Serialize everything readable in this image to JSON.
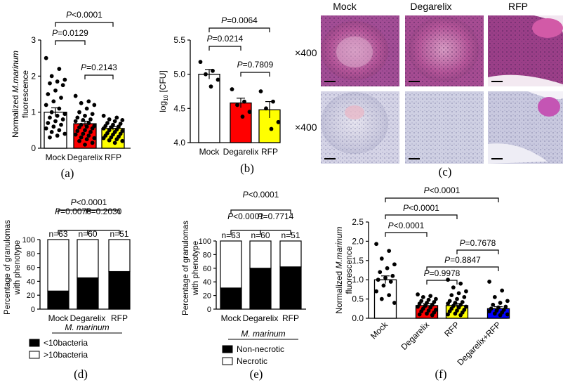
{
  "panel_labels": {
    "a": "(a)",
    "b": "(b)",
    "c": "(c)",
    "d": "(d)",
    "e": "(e)",
    "f": "(f)"
  },
  "histology": {
    "columns": [
      "Mock",
      "Degarelix",
      "RFP"
    ],
    "row_labels": [
      "×400",
      "×400"
    ]
  },
  "chart_data": [
    {
      "id": "a",
      "type": "bar",
      "categories": [
        "Mock",
        "Degarelix",
        "RFP"
      ],
      "values": [
        1.0,
        0.68,
        0.55
      ],
      "errors": [
        0.12,
        0.07,
        0.05
      ],
      "colors": [
        "#ffffff",
        "#ff0000",
        "#ffff00"
      ],
      "ylabel_line1": "Normalized ",
      "ylabel_italic": "M.marinum",
      "ylabel_line2": "fluorescence",
      "ylim": [
        0,
        3
      ],
      "yticks": [
        "0",
        "1",
        "2",
        "3"
      ],
      "points": [
        [
          2.5,
          2.2,
          2.0,
          1.9,
          1.85,
          1.8,
          1.75,
          1.6,
          1.5,
          1.4,
          1.3,
          1.2,
          1.1,
          1.0,
          0.95,
          0.9,
          0.85,
          0.8,
          0.75,
          0.7,
          0.65,
          0.6,
          0.55,
          0.5,
          0.45,
          0.4,
          0.35,
          0.3
        ],
        [
          1.45,
          1.3,
          1.25,
          1.2,
          1.1,
          1.0,
          0.95,
          0.9,
          0.85,
          0.8,
          0.78,
          0.75,
          0.7,
          0.65,
          0.62,
          0.6,
          0.58,
          0.55,
          0.5,
          0.48,
          0.45,
          0.4,
          0.38,
          0.35,
          0.3,
          0.28,
          0.25,
          0.2,
          0.15,
          0.1
        ],
        [
          0.9,
          0.85,
          0.8,
          0.78,
          0.75,
          0.7,
          0.68,
          0.65,
          0.62,
          0.6,
          0.58,
          0.55,
          0.52,
          0.5,
          0.48,
          0.45,
          0.42,
          0.4,
          0.38,
          0.35,
          0.32,
          0.3,
          0.28,
          0.25,
          0.22,
          0.2,
          0.15
        ]
      ],
      "brackets": [
        {
          "from": 0,
          "to": 2,
          "label": "P<0.0001"
        },
        {
          "from": 0,
          "to": 1,
          "label": "P=0.0129"
        },
        {
          "from": 1,
          "to": 2,
          "label": "P=0.2143"
        }
      ]
    },
    {
      "id": "b",
      "type": "bar",
      "categories": [
        "Mock",
        "Degarelix",
        "RFP"
      ],
      "values": [
        5.0,
        4.58,
        4.48
      ],
      "errors": [
        0.07,
        0.07,
        0.12
      ],
      "colors": [
        "#ffffff",
        "#ff0000",
        "#ffff00"
      ],
      "ylabel": "log10 [CFU]",
      "ylim": [
        4.0,
        5.5
      ],
      "yticks": [
        "4.0",
        "4.5",
        "5.0",
        "5.5"
      ],
      "points": [
        [
          5.18,
          5.05,
          5.0,
          4.92,
          4.82
        ],
        [
          4.78,
          4.6,
          4.55,
          4.45,
          4.38
        ],
        [
          4.75,
          4.6,
          4.5,
          4.3,
          4.2
        ]
      ],
      "brackets": [
        {
          "from": 0,
          "to": 2,
          "label": "P=0.0064"
        },
        {
          "from": 0,
          "to": 1,
          "label": "P=0.0214"
        },
        {
          "from": 1,
          "to": 2,
          "label": "P=0.7809"
        }
      ]
    },
    {
      "id": "d",
      "type": "stacked-bar",
      "categories": [
        "Mock",
        "Degarelix",
        "RFP"
      ],
      "series": [
        {
          "name": "<10bacteria",
          "color": "#000000",
          "values": [
            26,
            45,
            54
          ]
        },
        {
          "name": ">10bacteria",
          "color": "#ffffff",
          "values": [
            74,
            55,
            46
          ]
        }
      ],
      "n_labels": [
        "n=63",
        "n=60",
        "n=51"
      ],
      "ylabel": "Percentage of granulomas with phenotype",
      "ylim": [
        0,
        100
      ],
      "yticks": [
        "0",
        "20",
        "40",
        "60",
        "80",
        "100"
      ],
      "legend_title": "M. marinum",
      "brackets": [
        {
          "from": 0,
          "to": 2,
          "label": "P<0.0001"
        },
        {
          "from": 0,
          "to": 1,
          "label": "P=0.0076"
        },
        {
          "from": 1,
          "to": 2,
          "label": "P=0.2030"
        }
      ]
    },
    {
      "id": "e",
      "type": "stacked-bar",
      "categories": [
        "Mock",
        "Degarelix",
        "RFP"
      ],
      "series": [
        {
          "name": "Non-necrotic",
          "color": "#000000",
          "values": [
            31,
            60,
            62
          ]
        },
        {
          "name": "Necrotic",
          "color": "#ffffff",
          "values": [
            69,
            40,
            38
          ]
        }
      ],
      "n_labels": [
        "n=63",
        "n=60",
        "n=51"
      ],
      "ylabel": "Percentage of granulomas with phenotype",
      "ylim": [
        0,
        100
      ],
      "yticks": [
        "0",
        "20",
        "40",
        "60",
        "80",
        "100"
      ],
      "legend_title": "M. marinum",
      "brackets": [
        {
          "from": 0,
          "to": 2,
          "label": "P<0.0001"
        },
        {
          "from": 0,
          "to": 1,
          "label": "P<0.0001"
        },
        {
          "from": 1,
          "to": 2,
          "label": "P=0.7714"
        }
      ]
    },
    {
      "id": "f",
      "type": "bar",
      "categories": [
        "Mock",
        "Degarelix",
        "RFP",
        "Degarelix+RFP"
      ],
      "values": [
        1.0,
        0.33,
        0.33,
        0.25
      ],
      "errors": [
        0.1,
        0.05,
        0.05,
        0.05
      ],
      "colors": [
        "#ffffff",
        "#ff0000",
        "#ffff00",
        "#0000ff"
      ],
      "ylabel_line1": "Normalized ",
      "ylabel_italic": "M.marinum",
      "ylabel_line2": "fluorescence",
      "ylim": [
        0,
        2.5
      ],
      "yticks": [
        "0.0",
        "0.5",
        "1.0",
        "1.5",
        "2.0",
        "2.5"
      ],
      "points": [
        [
          1.93,
          1.75,
          1.55,
          1.4,
          1.3,
          1.2,
          1.1,
          1.05,
          1.0,
          0.95,
          0.85,
          0.7,
          0.6,
          0.5,
          0.4
        ],
        [
          0.62,
          0.58,
          0.55,
          0.5,
          0.48,
          0.45,
          0.42,
          0.4,
          0.38,
          0.35,
          0.32,
          0.3,
          0.28,
          0.25,
          0.22,
          0.2,
          0.18,
          0.15,
          0.12,
          0.1,
          0.08
        ],
        [
          1.0,
          0.9,
          0.8,
          0.7,
          0.65,
          0.6,
          0.55,
          0.5,
          0.45,
          0.42,
          0.4,
          0.38,
          0.35,
          0.32,
          0.3,
          0.28,
          0.25,
          0.22,
          0.2,
          0.18,
          0.15,
          0.12,
          0.1,
          0.08
        ],
        [
          0.95,
          0.72,
          0.55,
          0.45,
          0.4,
          0.35,
          0.3,
          0.28,
          0.25,
          0.22,
          0.2,
          0.18,
          0.15,
          0.12,
          0.1,
          0.08
        ]
      ],
      "brackets": [
        {
          "from": 0,
          "to": 3,
          "label": "P<0.0001"
        },
        {
          "from": 0,
          "to": 2,
          "label": "P<0.0001"
        },
        {
          "from": 0,
          "to": 1,
          "label": "P<0.0001"
        },
        {
          "from": 2,
          "to": 3,
          "label": "P=0.7678"
        },
        {
          "from": 1,
          "to": 3,
          "label": "P=0.8847"
        },
        {
          "from": 1,
          "to": 2,
          "label": "P=0.9978"
        }
      ]
    }
  ]
}
